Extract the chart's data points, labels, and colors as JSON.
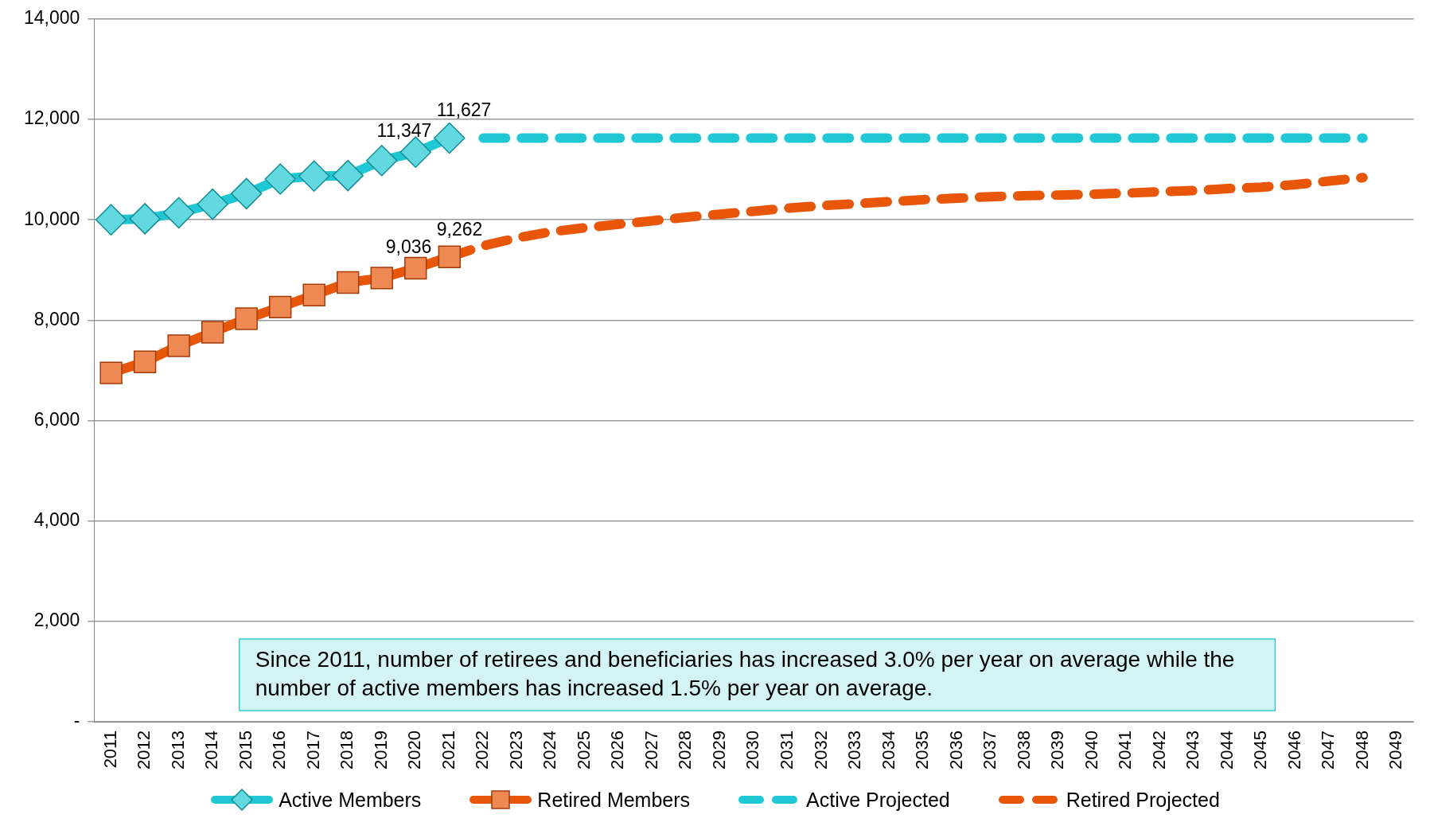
{
  "chart_data": {
    "type": "line",
    "categories": [
      "2011",
      "2012",
      "2013",
      "2014",
      "2015",
      "2016",
      "2017",
      "2018",
      "2019",
      "2020",
      "2021",
      "2022",
      "2023",
      "2024",
      "2025",
      "2026",
      "2027",
      "2028",
      "2029",
      "2030",
      "2031",
      "2032",
      "2033",
      "2034",
      "2035",
      "2036",
      "2037",
      "2038",
      "2039",
      "2040",
      "2041",
      "2042",
      "2043",
      "2044",
      "2045",
      "2046",
      "2047",
      "2048",
      "2049"
    ],
    "series": [
      {
        "name": "Active Members",
        "color": "#1fc8d4",
        "marker": "diamond",
        "line_style": "solid",
        "values": [
          10000,
          10020,
          10140,
          10310,
          10520,
          10810,
          10870,
          10880,
          11180,
          11347,
          11627,
          null,
          null,
          null,
          null,
          null,
          null,
          null,
          null,
          null,
          null,
          null,
          null,
          null,
          null,
          null,
          null,
          null,
          null,
          null,
          null,
          null,
          null,
          null,
          null,
          null,
          null,
          null,
          null
        ],
        "value_labels": [
          null,
          null,
          null,
          null,
          null,
          null,
          null,
          null,
          null,
          "11,347",
          "11,627",
          null,
          null,
          null,
          null,
          null,
          null,
          null,
          null,
          null,
          null,
          null,
          null,
          null,
          null,
          null,
          null,
          null,
          null,
          null,
          null,
          null,
          null,
          null,
          null,
          null,
          null,
          null,
          null
        ]
      },
      {
        "name": "Retired Members",
        "color": "#e8560a",
        "marker": "square",
        "line_style": "solid",
        "values": [
          6950,
          7170,
          7490,
          7760,
          8030,
          8260,
          8500,
          8750,
          8840,
          9036,
          9262,
          null,
          null,
          null,
          null,
          null,
          null,
          null,
          null,
          null,
          null,
          null,
          null,
          null,
          null,
          null,
          null,
          null,
          null,
          null,
          null,
          null,
          null,
          null,
          null,
          null,
          null,
          null,
          null
        ],
        "value_labels": [
          null,
          null,
          null,
          null,
          null,
          null,
          null,
          null,
          null,
          "9,036",
          "9,262",
          null,
          null,
          null,
          null,
          null,
          null,
          null,
          null,
          null,
          null,
          null,
          null,
          null,
          null,
          null,
          null,
          null,
          null,
          null,
          null,
          null,
          null,
          null,
          null,
          null,
          null,
          null,
          null
        ]
      },
      {
        "name": "Active Projected",
        "color": "#1fc8d4",
        "marker": "none",
        "line_style": "dashed",
        "values": [
          null,
          null,
          null,
          null,
          null,
          null,
          null,
          null,
          null,
          null,
          null,
          11627,
          11627,
          11627,
          11627,
          11627,
          11627,
          11627,
          11627,
          11627,
          11627,
          11627,
          11627,
          11627,
          11627,
          11627,
          11627,
          11627,
          11627,
          11627,
          11627,
          11627,
          11627,
          11627,
          11627,
          11627,
          11627,
          11627,
          null
        ]
      },
      {
        "name": "Retired Projected",
        "color": "#e8560a",
        "marker": "none",
        "line_style": "dashed",
        "values": [
          null,
          null,
          null,
          null,
          null,
          null,
          null,
          null,
          null,
          null,
          9262,
          9480,
          9640,
          9760,
          9840,
          9910,
          9980,
          10050,
          10110,
          10170,
          10230,
          10280,
          10320,
          10360,
          10400,
          10430,
          10460,
          10480,
          10490,
          10510,
          10530,
          10560,
          10580,
          10620,
          10650,
          10700,
          10770,
          10840,
          null
        ]
      }
    ],
    "ylim": [
      0,
      14000
    ],
    "yticks": [
      {
        "value": 0,
        "label": "-"
      },
      {
        "value": 2000,
        "label": "2,000"
      },
      {
        "value": 4000,
        "label": "4,000"
      },
      {
        "value": 6000,
        "label": "6,000"
      },
      {
        "value": 8000,
        "label": "8,000"
      },
      {
        "value": 10000,
        "label": "10,000"
      },
      {
        "value": 12000,
        "label": "12,000"
      },
      {
        "value": 14000,
        "label": "14,000"
      }
    ],
    "grid": "y",
    "legend": "bottom",
    "annotations": [
      "Since 2011, number of retirees and beneficiaries has increased 3.0% per year on average while the number of active members has increased 1.5% per year on average."
    ]
  }
}
